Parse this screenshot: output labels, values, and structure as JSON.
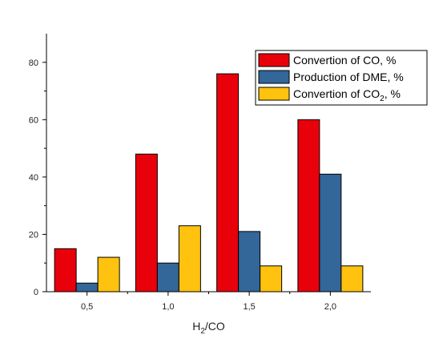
{
  "chart_data": {
    "type": "bar",
    "categories": [
      "0,5",
      "1,0",
      "1,5",
      "2,0"
    ],
    "series": [
      {
        "name": "Convertion of CO, %",
        "values": [
          15,
          48,
          76,
          60
        ],
        "color": "#e8000b"
      },
      {
        "name": "Production of DME, %",
        "values": [
          3,
          10,
          21,
          41
        ],
        "color": "#336699"
      },
      {
        "name": "Convertion of CO2, %",
        "values": [
          12,
          23,
          9,
          9
        ],
        "color": "#ffc20e"
      }
    ],
    "legend_parts": [
      {
        "main": "Convertion of CO, %",
        "sub": "",
        "tail": ""
      },
      {
        "main": "Production of DME, %",
        "sub": "",
        "tail": ""
      },
      {
        "main": "Convertion of CO",
        "sub": "2",
        "tail": ", %"
      }
    ],
    "xlabel": {
      "main": "H",
      "sub": "2",
      "tail": "/CO"
    },
    "ylabel": "",
    "ylim": [
      0,
      90
    ],
    "yticks": [
      "0",
      "20",
      "40",
      "60",
      "80"
    ],
    "legend_position": "top-right",
    "grid": false
  }
}
